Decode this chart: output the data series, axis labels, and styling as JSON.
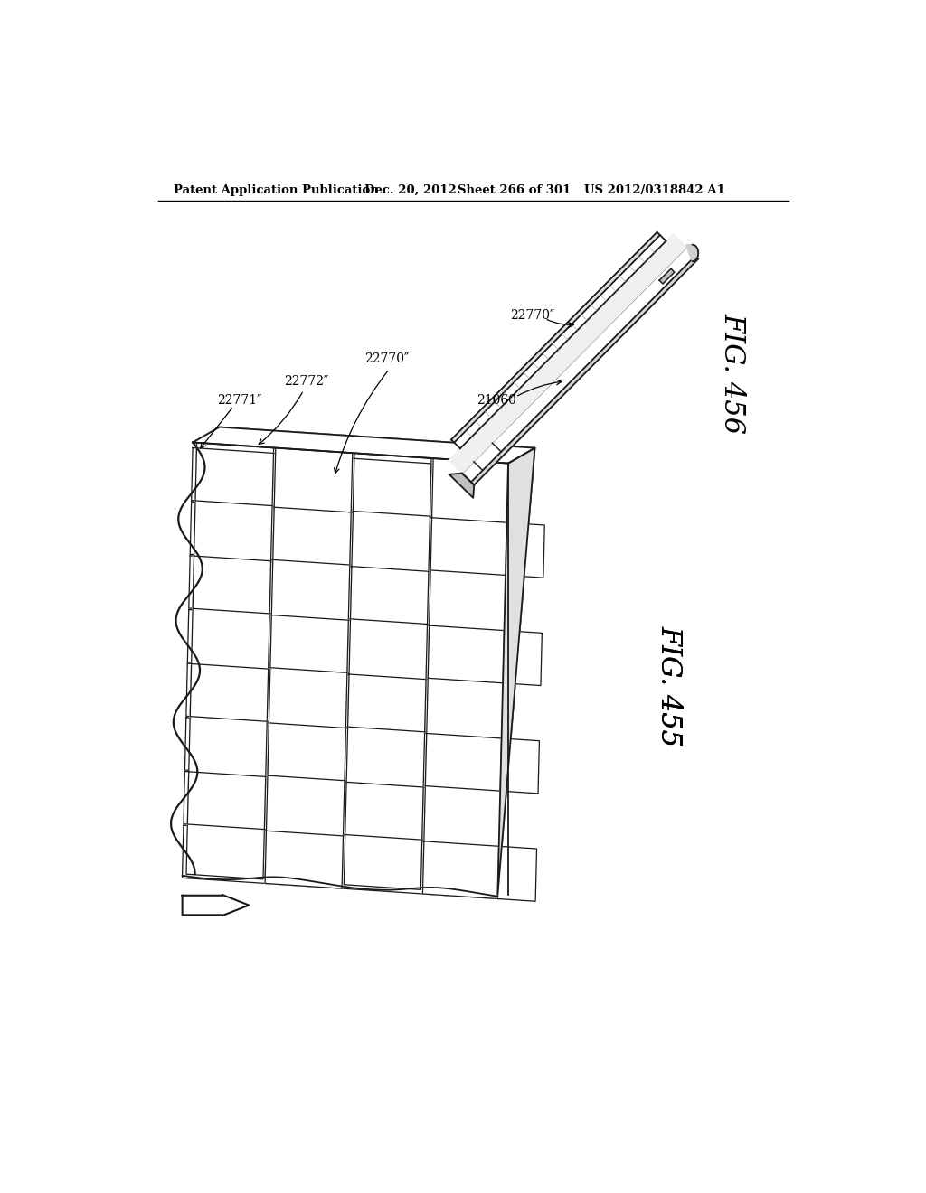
{
  "background_color": "#ffffff",
  "header_text": "Patent Application Publication",
  "header_date": "Dec. 20, 2012",
  "header_sheet": "Sheet 266 of 301",
  "header_patent": "US 2012/0318842 A1",
  "fig455_label": "FIG. 455",
  "fig456_label": "FIG. 456",
  "label_22771": "22771″",
  "label_22772": "22772″",
  "label_22770a": "22770″",
  "label_22770b": "22770″",
  "label_21060": "21060"
}
